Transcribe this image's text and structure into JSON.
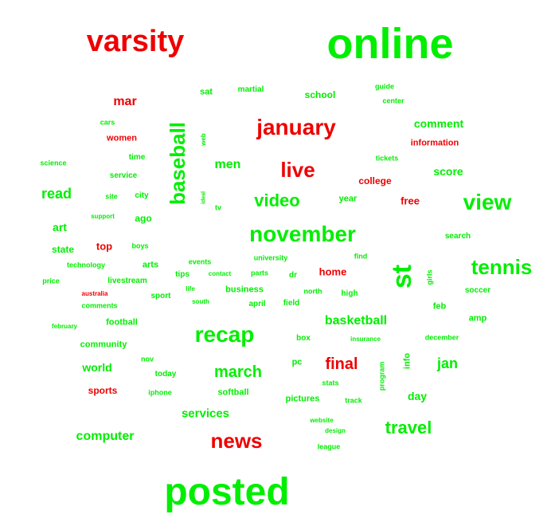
{
  "colors": {
    "green": "#00ee00",
    "red": "#ee0000"
  },
  "words": [
    {
      "text": "online",
      "color": "green"
    },
    {
      "text": "varsity",
      "color": "red"
    },
    {
      "text": "posted",
      "color": "green"
    },
    {
      "text": "november",
      "color": "green"
    },
    {
      "text": "recap",
      "color": "green"
    },
    {
      "text": "january",
      "color": "red"
    },
    {
      "text": "news",
      "color": "red"
    },
    {
      "text": "st",
      "color": "green"
    },
    {
      "text": "tennis",
      "color": "green"
    },
    {
      "text": "view",
      "color": "green"
    },
    {
      "text": "baseball",
      "color": "green"
    },
    {
      "text": "live",
      "color": "red"
    },
    {
      "text": "video",
      "color": "green"
    },
    {
      "text": "march",
      "color": "green"
    },
    {
      "text": "travel",
      "color": "green"
    },
    {
      "text": "final",
      "color": "red"
    },
    {
      "text": "basketball",
      "color": "green"
    },
    {
      "text": "jan",
      "color": "green"
    },
    {
      "text": "computer",
      "color": "green"
    },
    {
      "text": "services",
      "color": "green"
    },
    {
      "text": "read",
      "color": "green"
    },
    {
      "text": "men",
      "color": "green"
    },
    {
      "text": "mar",
      "color": "red"
    },
    {
      "text": "comment",
      "color": "green"
    },
    {
      "text": "score",
      "color": "green"
    },
    {
      "text": "world",
      "color": "green"
    },
    {
      "text": "day",
      "color": "green"
    },
    {
      "text": "home",
      "color": "red"
    },
    {
      "text": "free",
      "color": "red"
    },
    {
      "text": "college",
      "color": "red"
    },
    {
      "text": "school",
      "color": "green"
    },
    {
      "text": "art",
      "color": "green"
    },
    {
      "text": "state",
      "color": "green"
    },
    {
      "text": "sports",
      "color": "red"
    },
    {
      "text": "top",
      "color": "red"
    },
    {
      "text": "women",
      "color": "red"
    },
    {
      "text": "information",
      "color": "red"
    },
    {
      "text": "ago",
      "color": "green"
    },
    {
      "text": "arts",
      "color": "green"
    },
    {
      "text": "year",
      "color": "green"
    },
    {
      "text": "softball",
      "color": "green"
    },
    {
      "text": "football",
      "color": "green"
    },
    {
      "text": "community",
      "color": "green"
    },
    {
      "text": "business",
      "color": "green"
    },
    {
      "text": "pictures",
      "color": "green"
    },
    {
      "text": "today",
      "color": "green"
    },
    {
      "text": "pc",
      "color": "green"
    },
    {
      "text": "info",
      "color": "green"
    },
    {
      "text": "amp",
      "color": "green"
    },
    {
      "text": "feb",
      "color": "green"
    },
    {
      "text": "search",
      "color": "green"
    },
    {
      "text": "soccer",
      "color": "green"
    },
    {
      "text": "high",
      "color": "green"
    },
    {
      "text": "north",
      "color": "green"
    },
    {
      "text": "field",
      "color": "green"
    },
    {
      "text": "april",
      "color": "green"
    },
    {
      "text": "sport",
      "color": "green"
    },
    {
      "text": "comments",
      "color": "green"
    },
    {
      "text": "livestream",
      "color": "green"
    },
    {
      "text": "tips",
      "color": "green"
    },
    {
      "text": "parts",
      "color": "green"
    },
    {
      "text": "dr",
      "color": "green"
    },
    {
      "text": "university",
      "color": "green"
    },
    {
      "text": "find",
      "color": "green"
    },
    {
      "text": "events",
      "color": "green"
    },
    {
      "text": "contact",
      "color": "green"
    },
    {
      "text": "technology",
      "color": "green"
    },
    {
      "text": "price",
      "color": "green"
    },
    {
      "text": "boys",
      "color": "green"
    },
    {
      "text": "support",
      "color": "green"
    },
    {
      "text": "site",
      "color": "green"
    },
    {
      "text": "city",
      "color": "green"
    },
    {
      "text": "tv",
      "color": "green"
    },
    {
      "text": "ideal",
      "color": "green"
    },
    {
      "text": "service",
      "color": "green"
    },
    {
      "text": "time",
      "color": "green"
    },
    {
      "text": "science",
      "color": "green"
    },
    {
      "text": "cars",
      "color": "green"
    },
    {
      "text": "sat",
      "color": "green"
    },
    {
      "text": "martial",
      "color": "green"
    },
    {
      "text": "guide",
      "color": "green"
    },
    {
      "text": "center",
      "color": "green"
    },
    {
      "text": "tickets",
      "color": "green"
    },
    {
      "text": "web",
      "color": "green"
    },
    {
      "text": "australia",
      "color": "red"
    },
    {
      "text": "life",
      "color": "green"
    },
    {
      "text": "south",
      "color": "green"
    },
    {
      "text": "february",
      "color": "green"
    },
    {
      "text": "nov",
      "color": "green"
    },
    {
      "text": "iphone",
      "color": "green"
    },
    {
      "text": "box",
      "color": "green"
    },
    {
      "text": "insurance",
      "color": "green"
    },
    {
      "text": "december",
      "color": "green"
    },
    {
      "text": "stats",
      "color": "green"
    },
    {
      "text": "program",
      "color": "green"
    },
    {
      "text": "track",
      "color": "green"
    },
    {
      "text": "website",
      "color": "green"
    },
    {
      "text": "design",
      "color": "green"
    },
    {
      "text": "league",
      "color": "green"
    },
    {
      "text": "girls",
      "color": "green"
    }
  ]
}
